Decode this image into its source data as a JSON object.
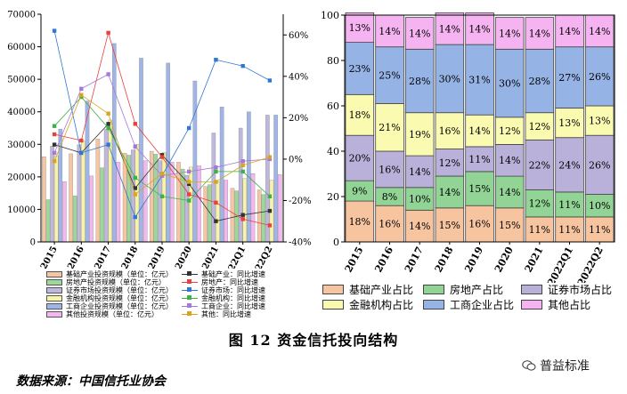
{
  "caption": "图 12    资金信托投向结构",
  "source": "数据来源：中国信托业协会",
  "brand": "普益标准",
  "brand_icon": "wechat-icon",
  "chart_data": [
    {
      "type": "bar",
      "categories": [
        "2015",
        "2016",
        "2017",
        "2018",
        "2019",
        "2020",
        "2021",
        "2022Q1",
        "2022Q2"
      ],
      "ylim": [
        0,
        70000
      ],
      "yticks": [
        "0",
        "10000",
        "20000",
        "30000",
        "40000",
        "50000",
        "60000",
        "70000"
      ],
      "y2lim": [
        -40,
        70
      ],
      "y2ticks": [
        "-40%",
        "-20%",
        "0%",
        "20%",
        "40%",
        "60%"
      ],
      "grid": false,
      "series": [
        {
          "name": "基础产业投资规模（单位：亿元）",
          "kind": "bar",
          "color": "#f6c5a2",
          "values": [
            26200,
            27100,
            31600,
            27300,
            27900,
            24500,
            17000,
            16500,
            16000
          ]
        },
        {
          "name": "房地产投资规模（单位：亿元）",
          "kind": "bar",
          "color": "#9ed79a",
          "values": [
            13000,
            14200,
            22800,
            26700,
            27000,
            22400,
            17600,
            15700,
            14600
          ]
        },
        {
          "name": "证券市场投资规模（单位：亿元）",
          "kind": "bar",
          "color": "#bfb7dc",
          "values": [
            29500,
            29900,
            34600,
            28300,
            25000,
            20500,
            33500,
            35000,
            39000
          ]
        },
        {
          "name": "金融机构投资规模（单位：亿元）",
          "kind": "bar",
          "color": "#f7f3a8",
          "values": [
            26500,
            31000,
            37500,
            30000,
            27500,
            23000,
            18500,
            19500,
            19000
          ]
        },
        {
          "name": "工商企业投资规模（单位：亿元）",
          "kind": "bar",
          "color": "#9fb5e7",
          "values": [
            34700,
            43300,
            61000,
            56500,
            55000,
            49500,
            41500,
            40000,
            39000
          ]
        },
        {
          "name": "其他投资规模（单位：亿元）",
          "kind": "bar",
          "color": "#f4b7ef",
          "values": [
            18500,
            20300,
            24500,
            25000,
            24500,
            23400,
            19000,
            21000,
            20700
          ]
        },
        {
          "name": "基础产业：同比增速",
          "kind": "line",
          "color": "#333333",
          "values": [
            7,
            3,
            17,
            -14,
            2,
            -12,
            -30,
            -27,
            -25
          ]
        },
        {
          "name": "房地产：同比增速",
          "kind": "line",
          "color": "#e8413f",
          "values": [
            12,
            9,
            61,
            17,
            1,
            -17,
            -21,
            -29,
            -32
          ]
        },
        {
          "name": "证券市场：同比增速",
          "kind": "line",
          "color": "#2f77d1",
          "values": [
            62,
            3,
            7,
            -28,
            -8,
            15,
            48,
            45,
            38
          ]
        },
        {
          "name": "金融机构：同比增速",
          "kind": "line",
          "color": "#3bb14a",
          "values": [
            16,
            30,
            15,
            -9,
            -18,
            -20,
            -6,
            -6,
            -18
          ]
        },
        {
          "name": "工商企业：同比增速",
          "kind": "line",
          "color": "#a678d8",
          "values": [
            3,
            34,
            41,
            6,
            -8,
            -6,
            -4,
            -1,
            0
          ]
        },
        {
          "name": "其他：同比增速",
          "kind": "line",
          "color": "#d8a61e",
          "values": [
            -1,
            31,
            22,
            -17,
            -7,
            -11,
            -11,
            -3,
            1
          ]
        }
      ]
    },
    {
      "type": "bar",
      "stacked": true,
      "categories": [
        "2015",
        "2016",
        "2017",
        "2018",
        "2019",
        "2020",
        "2021",
        "2022Q1",
        "2022Q2"
      ],
      "ylim": [
        0,
        100
      ],
      "yticks": [
        "0",
        "20",
        "40",
        "60",
        "80",
        "100"
      ],
      "grid": false,
      "series": [
        {
          "name": "基础产业占比",
          "color": "#f7c4a0",
          "values": [
            18,
            16,
            14,
            15,
            16,
            15,
            11,
            11,
            11
          ],
          "labels": [
            "18%",
            "16%",
            "14%",
            "15%",
            "16%",
            "15%",
            "11%",
            "11%",
            "11%"
          ]
        },
        {
          "name": "房地产占比",
          "color": "#92d495",
          "values": [
            9,
            8,
            10,
            14,
            15,
            14,
            12,
            11,
            10
          ],
          "labels": [
            "9%",
            "8%",
            "10%",
            "14%",
            "15%",
            "14%",
            "12%",
            "11%",
            "10%"
          ]
        },
        {
          "name": "证券市场占比",
          "color": "#b9b1d9",
          "values": [
            20,
            16,
            14,
            12,
            11,
            14,
            22,
            24,
            26
          ],
          "labels": [
            "20%",
            "16%",
            "14%",
            "12%",
            "11%",
            "14%",
            "22%",
            "24%",
            "26%"
          ]
        },
        {
          "name": "金融机构占比",
          "color": "#fafab0",
          "values": [
            18,
            21,
            19,
            16,
            14,
            12,
            12,
            13,
            13
          ],
          "labels": [
            "18%",
            "21%",
            "19%",
            "16%",
            "14%",
            "12%",
            "12%",
            "13%",
            "13%"
          ]
        },
        {
          "name": "工商企业占比",
          "color": "#96b3e6",
          "values": [
            23,
            25,
            28,
            30,
            31,
            30,
            28,
            27,
            26
          ],
          "labels": [
            "23%",
            "25%",
            "28%",
            "30%",
            "31%",
            "30%",
            "28%",
            "27%",
            "26%"
          ]
        },
        {
          "name": "其他占比",
          "color": "#f6b3f1",
          "values": [
            13,
            14,
            14,
            14,
            14,
            14,
            14,
            14,
            14
          ],
          "labels": [
            "13%",
            "14%",
            "14%",
            "14%",
            "14%",
            "14%",
            "14%",
            "14%",
            "14%"
          ]
        }
      ]
    }
  ]
}
